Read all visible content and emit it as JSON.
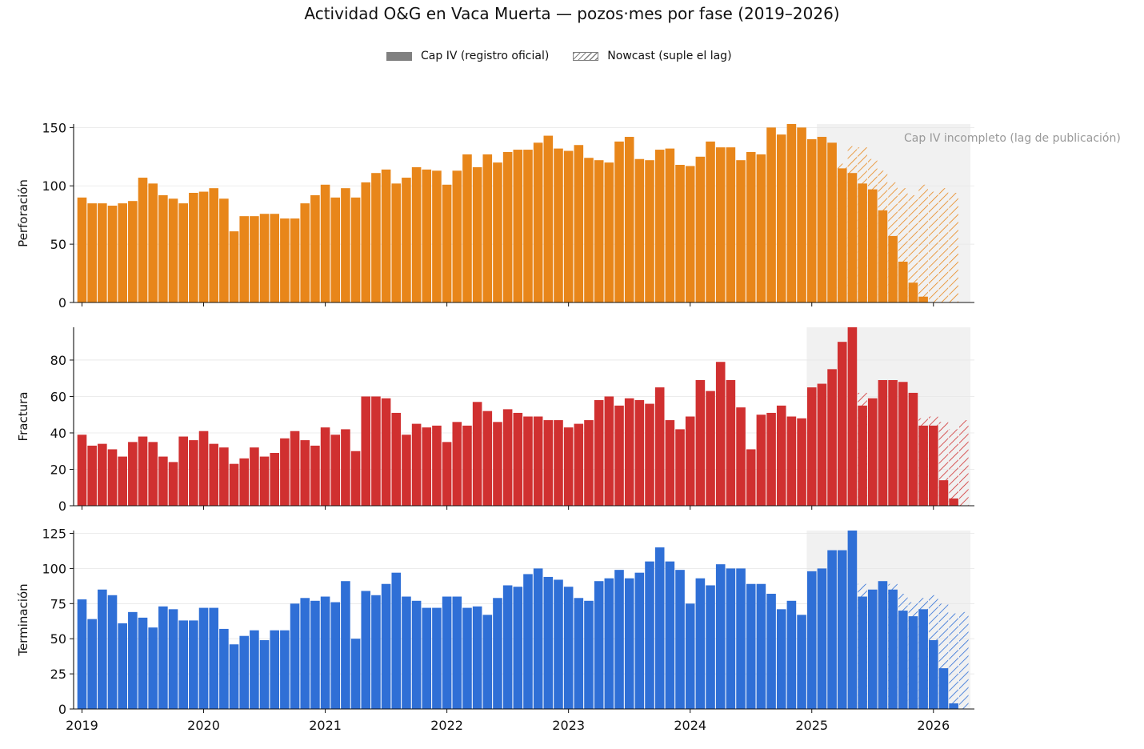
{
  "title": "Actividad O&G en Vaca Muerta — pozos·mes por fase (2019–2026)",
  "legend": {
    "official": "Cap IV (registro oficial)",
    "nowcast": "Nowcast (suple el lag)"
  },
  "note": "Cap IV incompleto (lag de publicación)",
  "chart_data": {
    "type": "bar",
    "start_month": "2019-01",
    "x_tick_labels": [
      "2019",
      "2020",
      "2021",
      "2022",
      "2023",
      "2024",
      "2025",
      "2026"
    ],
    "panels": [
      {
        "ylabel": "Perforación",
        "color": "#e8861a",
        "ylim": [
          0,
          153
        ],
        "yticks": [
          0,
          50,
          100,
          150
        ],
        "shaded_from": "2025-02",
        "official": [
          90,
          85,
          85,
          83,
          85,
          87,
          107,
          102,
          92,
          89,
          85,
          94,
          95,
          98,
          89,
          61,
          74,
          74,
          76,
          76,
          72,
          72,
          85,
          92,
          101,
          90,
          98,
          90,
          103,
          111,
          114,
          102,
          107,
          116,
          114,
          113,
          101,
          113,
          127,
          116,
          127,
          120,
          129,
          131,
          131,
          137,
          143,
          132,
          130,
          135,
          124,
          122,
          120,
          138,
          142,
          123,
          122,
          131,
          132,
          118,
          117,
          125,
          138,
          133,
          133,
          122,
          129,
          127,
          150,
          144,
          153,
          150,
          140,
          142,
          137,
          115,
          111,
          102,
          97,
          79,
          57,
          35,
          17,
          5,
          0,
          0,
          0
        ],
        "nowcast": [
          null,
          null,
          null,
          null,
          null,
          null,
          null,
          null,
          null,
          null,
          null,
          null,
          null,
          null,
          null,
          null,
          null,
          null,
          null,
          null,
          null,
          null,
          null,
          null,
          null,
          null,
          null,
          null,
          null,
          null,
          null,
          null,
          null,
          null,
          null,
          null,
          null,
          null,
          null,
          null,
          null,
          null,
          null,
          null,
          null,
          null,
          null,
          null,
          null,
          null,
          null,
          null,
          null,
          null,
          null,
          null,
          null,
          null,
          null,
          null,
          null,
          null,
          null,
          null,
          null,
          null,
          null,
          null,
          null,
          null,
          null,
          null,
          null,
          null,
          null,
          119,
          134,
          133,
          123,
          113,
          103,
          98,
          92,
          101,
          95,
          98,
          94
        ]
      },
      {
        "ylabel": "Fractura",
        "color": "#d03030",
        "ylim": [
          0,
          98
        ],
        "yticks": [
          0,
          20,
          40,
          60,
          80
        ],
        "shaded_from": "2025-01",
        "official": [
          39,
          33,
          34,
          31,
          27,
          35,
          38,
          35,
          27,
          24,
          38,
          36,
          41,
          34,
          32,
          23,
          26,
          32,
          27,
          29,
          37,
          41,
          36,
          33,
          43,
          39,
          42,
          30,
          60,
          60,
          59,
          51,
          39,
          45,
          43,
          44,
          35,
          46,
          44,
          57,
          52,
          46,
          53,
          51,
          49,
          49,
          47,
          47,
          43,
          45,
          47,
          58,
          60,
          55,
          59,
          58,
          56,
          65,
          47,
          42,
          49,
          69,
          63,
          79,
          69,
          54,
          31,
          50,
          51,
          55,
          49,
          48,
          65,
          67,
          75,
          90,
          98,
          55,
          59,
          69,
          69,
          68,
          62,
          44,
          44,
          14,
          4,
          0
        ],
        "nowcast": [
          null,
          null,
          null,
          null,
          null,
          null,
          null,
          null,
          null,
          null,
          null,
          null,
          null,
          null,
          null,
          null,
          null,
          null,
          null,
          null,
          null,
          null,
          null,
          null,
          null,
          null,
          null,
          null,
          null,
          null,
          null,
          null,
          null,
          null,
          null,
          null,
          null,
          null,
          null,
          null,
          null,
          null,
          null,
          null,
          null,
          null,
          null,
          null,
          null,
          null,
          null,
          null,
          null,
          null,
          null,
          null,
          null,
          null,
          null,
          null,
          null,
          null,
          null,
          null,
          null,
          null,
          null,
          null,
          null,
          null,
          null,
          null,
          null,
          null,
          null,
          null,
          null,
          62,
          null,
          null,
          null,
          null,
          null,
          48,
          49,
          46,
          42,
          47
        ]
      },
      {
        "ylabel": "Terminación",
        "color": "#2f6fd6",
        "ylim": [
          0,
          127
        ],
        "yticks": [
          0,
          25,
          50,
          75,
          100,
          125
        ],
        "shaded_from": "2025-01",
        "official": [
          78,
          64,
          85,
          81,
          61,
          69,
          65,
          58,
          73,
          71,
          63,
          63,
          72,
          72,
          57,
          46,
          52,
          56,
          49,
          56,
          56,
          75,
          79,
          77,
          80,
          76,
          91,
          50,
          84,
          81,
          89,
          97,
          80,
          77,
          72,
          72,
          80,
          80,
          72,
          73,
          67,
          79,
          88,
          87,
          96,
          100,
          94,
          92,
          87,
          79,
          77,
          91,
          93,
          99,
          93,
          97,
          105,
          115,
          105,
          99,
          75,
          93,
          88,
          103,
          100,
          100,
          89,
          89,
          82,
          71,
          77,
          67,
          98,
          100,
          113,
          113,
          127,
          80,
          85,
          91,
          85,
          70,
          66,
          71,
          49,
          29,
          4,
          0
        ],
        "nowcast": [
          null,
          null,
          null,
          null,
          null,
          null,
          null,
          null,
          null,
          null,
          null,
          null,
          null,
          null,
          null,
          null,
          null,
          null,
          null,
          null,
          null,
          null,
          null,
          null,
          null,
          null,
          null,
          null,
          null,
          null,
          null,
          null,
          null,
          null,
          null,
          null,
          null,
          null,
          null,
          null,
          null,
          null,
          null,
          null,
          null,
          null,
          null,
          null,
          null,
          null,
          null,
          null,
          null,
          null,
          null,
          null,
          null,
          null,
          null,
          null,
          null,
          null,
          null,
          null,
          null,
          null,
          null,
          null,
          null,
          null,
          null,
          null,
          null,
          null,
          null,
          null,
          null,
          89,
          null,
          null,
          89,
          82,
          76,
          79,
          81,
          75,
          68,
          69
        ]
      }
    ]
  }
}
